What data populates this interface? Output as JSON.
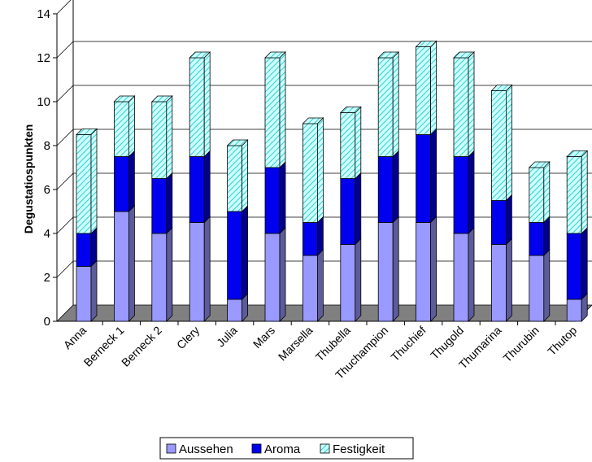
{
  "chart_data": {
    "type": "bar",
    "stacked": true,
    "ylabel": "Degustatiospunkten",
    "ylim": [
      0,
      14
    ],
    "yticks": [
      0,
      2,
      4,
      6,
      8,
      10,
      12,
      14
    ],
    "grid": true,
    "legend_position": "bottom",
    "categories": [
      "Anna",
      "Berneck 1",
      "Berneck 2",
      "Clery",
      "Julia",
      "Mars",
      "Marsella",
      "Thubella",
      "Thuchampion",
      "Thuchief",
      "Thugold",
      "Thumarina",
      "Thurubin",
      "Thutop"
    ],
    "series": [
      {
        "name": "Aussehen",
        "color": "#9999ff",
        "values": [
          2.5,
          5,
          4,
          4.5,
          1,
          4,
          3,
          3.5,
          4.5,
          4.5,
          4,
          3.5,
          3,
          1
        ]
      },
      {
        "name": "Aroma",
        "color": "#0000ee",
        "values": [
          1.5,
          2.5,
          2.5,
          3,
          4,
          3,
          1.5,
          3,
          3,
          4,
          3.5,
          2,
          1.5,
          3
        ]
      },
      {
        "name": "Festigkeit",
        "color": "#ccffff",
        "pattern": "diagonal-hatch",
        "values": [
          4.5,
          2.5,
          3.5,
          4.5,
          3,
          5,
          4.5,
          3,
          4.5,
          4,
          4.5,
          5,
          2.5,
          3.5
        ]
      }
    ]
  }
}
